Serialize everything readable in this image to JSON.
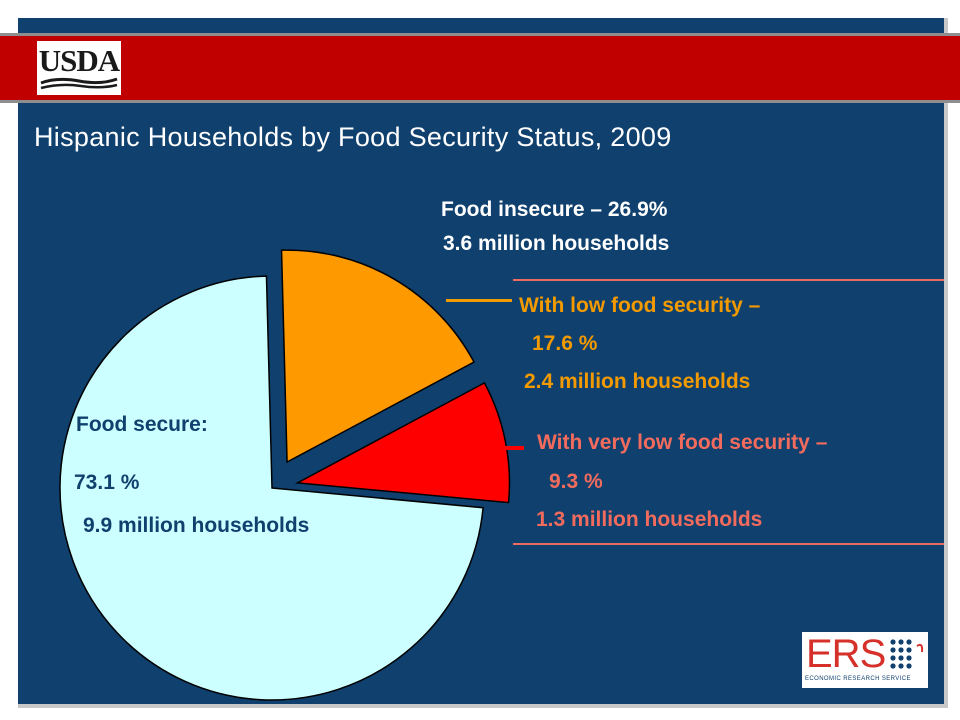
{
  "header": {
    "agency_logo_text": "USDA"
  },
  "chart_data": {
    "type": "pie",
    "title": "Hispanic Households by Food Security Status, 2009",
    "slices": [
      {
        "label": "Food secure:",
        "value": 73.1,
        "value_text": "73.1 %",
        "households": "9.9 million households",
        "color": "#ccffff"
      },
      {
        "label": "With low food security –",
        "value": 17.6,
        "value_text": "17.6 %",
        "households": "2.4 million households",
        "color": "#ff9900"
      },
      {
        "label": "With very low food security –",
        "value": 9.3,
        "value_text": "9.3 %",
        "households": "1.3 million households",
        "color": "#ff0000"
      }
    ],
    "group": {
      "label": "Food insecure  – 26.9%",
      "households": "3.6 million households"
    }
  },
  "footer": {
    "logo_text": "ERS",
    "logo_subtitle": "ECONOMIC RESEARCH SERVICE"
  },
  "colors": {
    "background": "#0f406e",
    "header_band": "#c00000",
    "low_food_security_text": "#f39a00",
    "very_low_food_security_text": "#f36b5d",
    "bracket_line": "#ec6a5e"
  }
}
